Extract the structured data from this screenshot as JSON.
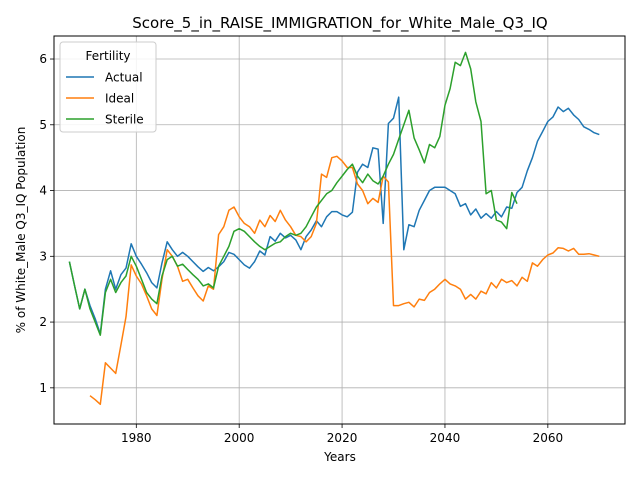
{
  "chart_data": {
    "type": "line",
    "title": "Score_5_in_RAISE_IMMIGRATION_for_White_Male_Q3_IQ",
    "xlabel": "Years",
    "ylabel": "% of White_Male Q3_IQ Population",
    "xlim": [
      1964,
      2075
    ],
    "ylim": [
      0.45,
      6.35
    ],
    "xticks": [
      1980,
      2000,
      2020,
      2040,
      2060
    ],
    "yticks": [
      1,
      2,
      3,
      4,
      5,
      6
    ],
    "grid": true,
    "legend": {
      "title": "Fertility",
      "placement": "top-left"
    },
    "colors": {
      "Actual": "#1f77b4",
      "Ideal": "#ff7f0e",
      "Sterile": "#2ca02c"
    },
    "series": [
      {
        "name": "Actual",
        "x": [
          1967,
          1968,
          1969,
          1970,
          1971,
          1972,
          1973,
          1974,
          1975,
          1976,
          1977,
          1978,
          1979,
          1980,
          1981,
          1982,
          1983,
          1984,
          1985,
          1986,
          1987,
          1988,
          1989,
          1990,
          1991,
          1992,
          1993,
          1994,
          1995,
          1996,
          1997,
          1998,
          1999,
          2000,
          2001,
          2002,
          2003,
          2004,
          2005,
          2006,
          2007,
          2008,
          2009,
          2010,
          2011,
          2012,
          2013,
          2014,
          2015,
          2016,
          2017,
          2018,
          2019,
          2020,
          2021,
          2022,
          2023,
          2024,
          2025,
          2026,
          2027,
          2028,
          2029,
          2030,
          2031,
          2032,
          2033,
          2034,
          2035,
          2036,
          2037,
          2038,
          2039,
          2040,
          2041,
          2042,
          2043,
          2044,
          2045,
          2046,
          2047,
          2048,
          2049,
          2050,
          2051,
          2052,
          2053,
          2054,
          2055,
          2056,
          2057,
          2058,
          2059,
          2060,
          2061,
          2062,
          2063,
          2064,
          2065,
          2066,
          2067,
          2068,
          2069,
          2070
        ],
        "values": [
          2.92,
          2.55,
          2.2,
          2.5,
          2.25,
          2.05,
          1.82,
          2.5,
          2.78,
          2.5,
          2.72,
          2.82,
          3.19,
          3.0,
          2.88,
          2.75,
          2.6,
          2.52,
          2.9,
          3.22,
          3.1,
          3.0,
          3.06,
          3.0,
          2.92,
          2.84,
          2.77,
          2.83,
          2.78,
          2.84,
          2.92,
          3.06,
          3.03,
          2.95,
          2.87,
          2.82,
          2.92,
          3.08,
          3.02,
          3.3,
          3.23,
          3.35,
          3.28,
          3.32,
          3.25,
          3.1,
          3.3,
          3.4,
          3.54,
          3.45,
          3.6,
          3.68,
          3.68,
          3.63,
          3.6,
          3.67,
          4.28,
          4.4,
          4.35,
          4.65,
          4.63,
          3.5,
          5.02,
          5.1,
          5.42,
          3.1,
          3.48,
          3.45,
          3.7,
          3.85,
          4.0,
          4.05,
          4.05,
          4.05,
          4.0,
          3.95,
          3.76,
          3.8,
          3.63,
          3.72,
          3.58,
          3.65,
          3.58,
          3.68,
          3.6,
          3.75,
          3.73,
          3.97,
          4.05,
          4.3,
          4.5,
          4.75,
          4.9,
          5.05,
          5.12,
          5.27,
          5.2,
          5.25,
          5.15,
          5.08,
          4.97,
          4.93,
          4.88,
          4.85
        ]
      },
      {
        "name": "Ideal",
        "x": [
          1971,
          1972,
          1973,
          1974,
          1975,
          1976,
          1977,
          1978,
          1979,
          1980,
          1981,
          1982,
          1983,
          1984,
          1985,
          1986,
          1987,
          1988,
          1989,
          1990,
          1991,
          1992,
          1993,
          1994,
          1995,
          1996,
          1997,
          1998,
          1999,
          2000,
          2001,
          2002,
          2003,
          2004,
          2005,
          2006,
          2007,
          2008,
          2009,
          2010,
          2011,
          2012,
          2013,
          2014,
          2015,
          2016,
          2017,
          2018,
          2019,
          2020,
          2021,
          2022,
          2023,
          2024,
          2025,
          2026,
          2027,
          2028,
          2029,
          2030,
          2031,
          2032,
          2033,
          2034,
          2035,
          2036,
          2037,
          2038,
          2039,
          2040,
          2041,
          2042,
          2043,
          2044,
          2045,
          2046,
          2047,
          2048,
          2049,
          2050,
          2051,
          2052,
          2053,
          2054,
          2055,
          2056,
          2057,
          2058,
          2059,
          2060,
          2061,
          2062,
          2063,
          2064,
          2065,
          2066,
          2067,
          2068,
          2069,
          2070
        ],
        "values": [
          0.88,
          0.82,
          0.75,
          1.38,
          1.3,
          1.22,
          1.65,
          2.08,
          2.87,
          2.7,
          2.58,
          2.4,
          2.2,
          2.1,
          2.65,
          3.1,
          3.0,
          2.85,
          2.62,
          2.65,
          2.52,
          2.4,
          2.32,
          2.55,
          2.5,
          3.33,
          3.45,
          3.7,
          3.75,
          3.6,
          3.5,
          3.45,
          3.35,
          3.55,
          3.45,
          3.62,
          3.53,
          3.7,
          3.55,
          3.45,
          3.32,
          3.3,
          3.22,
          3.3,
          3.5,
          4.25,
          4.2,
          4.5,
          4.52,
          4.45,
          4.35,
          4.35,
          4.1,
          4.0,
          3.8,
          3.88,
          3.82,
          4.22,
          4.13,
          2.25,
          2.25,
          2.28,
          2.3,
          2.23,
          2.35,
          2.33,
          2.45,
          2.5,
          2.58,
          2.65,
          2.58,
          2.55,
          2.5,
          2.35,
          2.42,
          2.35,
          2.47,
          2.43,
          2.6,
          2.52,
          2.65,
          2.6,
          2.63,
          2.55,
          2.68,
          2.62,
          2.9,
          2.85,
          2.95,
          3.02,
          3.05,
          3.13,
          3.12,
          3.08,
          3.12,
          3.03,
          3.03,
          3.04,
          3.02,
          3.0
        ]
      },
      {
        "name": "Sterile",
        "x": [
          1967,
          1968,
          1969,
          1970,
          1971,
          1972,
          1973,
          1974,
          1975,
          1976,
          1977,
          1978,
          1979,
          1980,
          1981,
          1982,
          1983,
          1984,
          1985,
          1986,
          1987,
          1988,
          1989,
          1990,
          1991,
          1992,
          1993,
          1994,
          1995,
          1996,
          1997,
          1998,
          1999,
          2000,
          2001,
          2002,
          2003,
          2004,
          2005,
          2006,
          2007,
          2008,
          2009,
          2010,
          2011,
          2012,
          2013,
          2014,
          2015,
          2016,
          2017,
          2018,
          2019,
          2020,
          2021,
          2022,
          2023,
          2024,
          2025,
          2026,
          2027,
          2028,
          2029,
          2030,
          2031,
          2032,
          2033,
          2034,
          2035,
          2036,
          2037,
          2038,
          2039,
          2040,
          2041,
          2042,
          2043,
          2044,
          2045,
          2046,
          2047,
          2048,
          2049,
          2050,
          2051,
          2052,
          2053,
          2054
        ],
        "values": [
          2.92,
          2.55,
          2.2,
          2.5,
          2.2,
          2.0,
          1.8,
          2.45,
          2.65,
          2.45,
          2.6,
          2.7,
          3.0,
          2.85,
          2.65,
          2.45,
          2.35,
          2.28,
          2.7,
          2.95,
          3.0,
          2.85,
          2.88,
          2.8,
          2.72,
          2.65,
          2.55,
          2.58,
          2.52,
          2.85,
          3.0,
          3.15,
          3.38,
          3.42,
          3.38,
          3.3,
          3.22,
          3.15,
          3.1,
          3.15,
          3.2,
          3.22,
          3.3,
          3.35,
          3.32,
          3.35,
          3.45,
          3.6,
          3.75,
          3.85,
          3.95,
          4.0,
          4.12,
          4.22,
          4.32,
          4.4,
          4.22,
          4.12,
          4.25,
          4.15,
          4.1,
          4.22,
          4.4,
          4.55,
          4.78,
          5.0,
          5.22,
          4.8,
          4.62,
          4.42,
          4.7,
          4.65,
          4.82,
          5.3,
          5.55,
          5.95,
          5.9,
          6.1,
          5.85,
          5.35,
          5.05,
          3.95,
          4.0,
          3.55,
          3.52,
          3.42,
          3.97,
          3.8
        ]
      }
    ]
  }
}
